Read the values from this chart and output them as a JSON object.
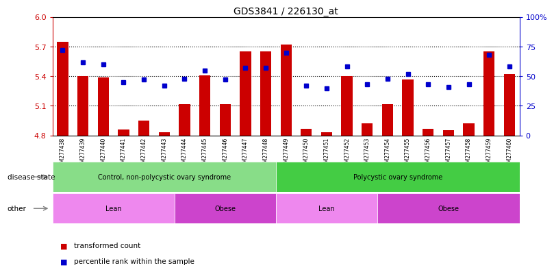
{
  "title": "GDS3841 / 226130_at",
  "samples": [
    "GSM277438",
    "GSM277439",
    "GSM277440",
    "GSM277441",
    "GSM277442",
    "GSM277443",
    "GSM277444",
    "GSM277445",
    "GSM277446",
    "GSM277447",
    "GSM277448",
    "GSM277449",
    "GSM277450",
    "GSM277451",
    "GSM277452",
    "GSM277453",
    "GSM277454",
    "GSM277455",
    "GSM277456",
    "GSM277457",
    "GSM277458",
    "GSM277459",
    "GSM277460"
  ],
  "bar_values": [
    5.75,
    5.4,
    5.39,
    4.86,
    4.95,
    4.83,
    5.12,
    5.41,
    5.12,
    5.65,
    5.65,
    5.72,
    4.87,
    4.83,
    5.4,
    4.92,
    5.12,
    5.37,
    4.87,
    4.85,
    4.92,
    5.65,
    5.42
  ],
  "dot_values": [
    72,
    62,
    60,
    45,
    47,
    42,
    48,
    55,
    47,
    57,
    57,
    70,
    42,
    40,
    58,
    43,
    48,
    52,
    43,
    41,
    43,
    68,
    58
  ],
  "ylim_left": [
    4.8,
    6.0
  ],
  "ylim_right": [
    0,
    100
  ],
  "yticks_left": [
    4.8,
    5.1,
    5.4,
    5.7,
    6.0
  ],
  "yticks_right": [
    0,
    25,
    50,
    75,
    100
  ],
  "ytick_labels_right": [
    "0",
    "25",
    "50",
    "75",
    "100%"
  ],
  "bar_color": "#cc0000",
  "dot_color": "#0000cc",
  "bar_width": 0.55,
  "groups": {
    "disease_state": [
      {
        "label": "Control, non-polycystic ovary syndrome",
        "start": 0,
        "end": 10,
        "color": "#88dd88"
      },
      {
        "label": "Polycystic ovary syndrome",
        "start": 11,
        "end": 22,
        "color": "#44cc44"
      }
    ],
    "other": [
      {
        "label": "Lean",
        "start": 0,
        "end": 5,
        "color": "#ee88ee"
      },
      {
        "label": "Obese",
        "start": 6,
        "end": 10,
        "color": "#cc44cc"
      },
      {
        "label": "Lean",
        "start": 11,
        "end": 15,
        "color": "#ee88ee"
      },
      {
        "label": "Obese",
        "start": 16,
        "end": 22,
        "color": "#cc44cc"
      }
    ]
  },
  "disease_state_label": "disease state",
  "other_label": "other",
  "legend_items": [
    {
      "label": "transformed count",
      "color": "#cc0000"
    },
    {
      "label": "percentile rank within the sample",
      "color": "#0000cc"
    }
  ],
  "bg_color": "#ffffff",
  "axis_color_left": "#cc0000",
  "axis_color_right": "#0000cc",
  "grid_yticks": [
    5.1,
    5.4,
    5.7
  ]
}
